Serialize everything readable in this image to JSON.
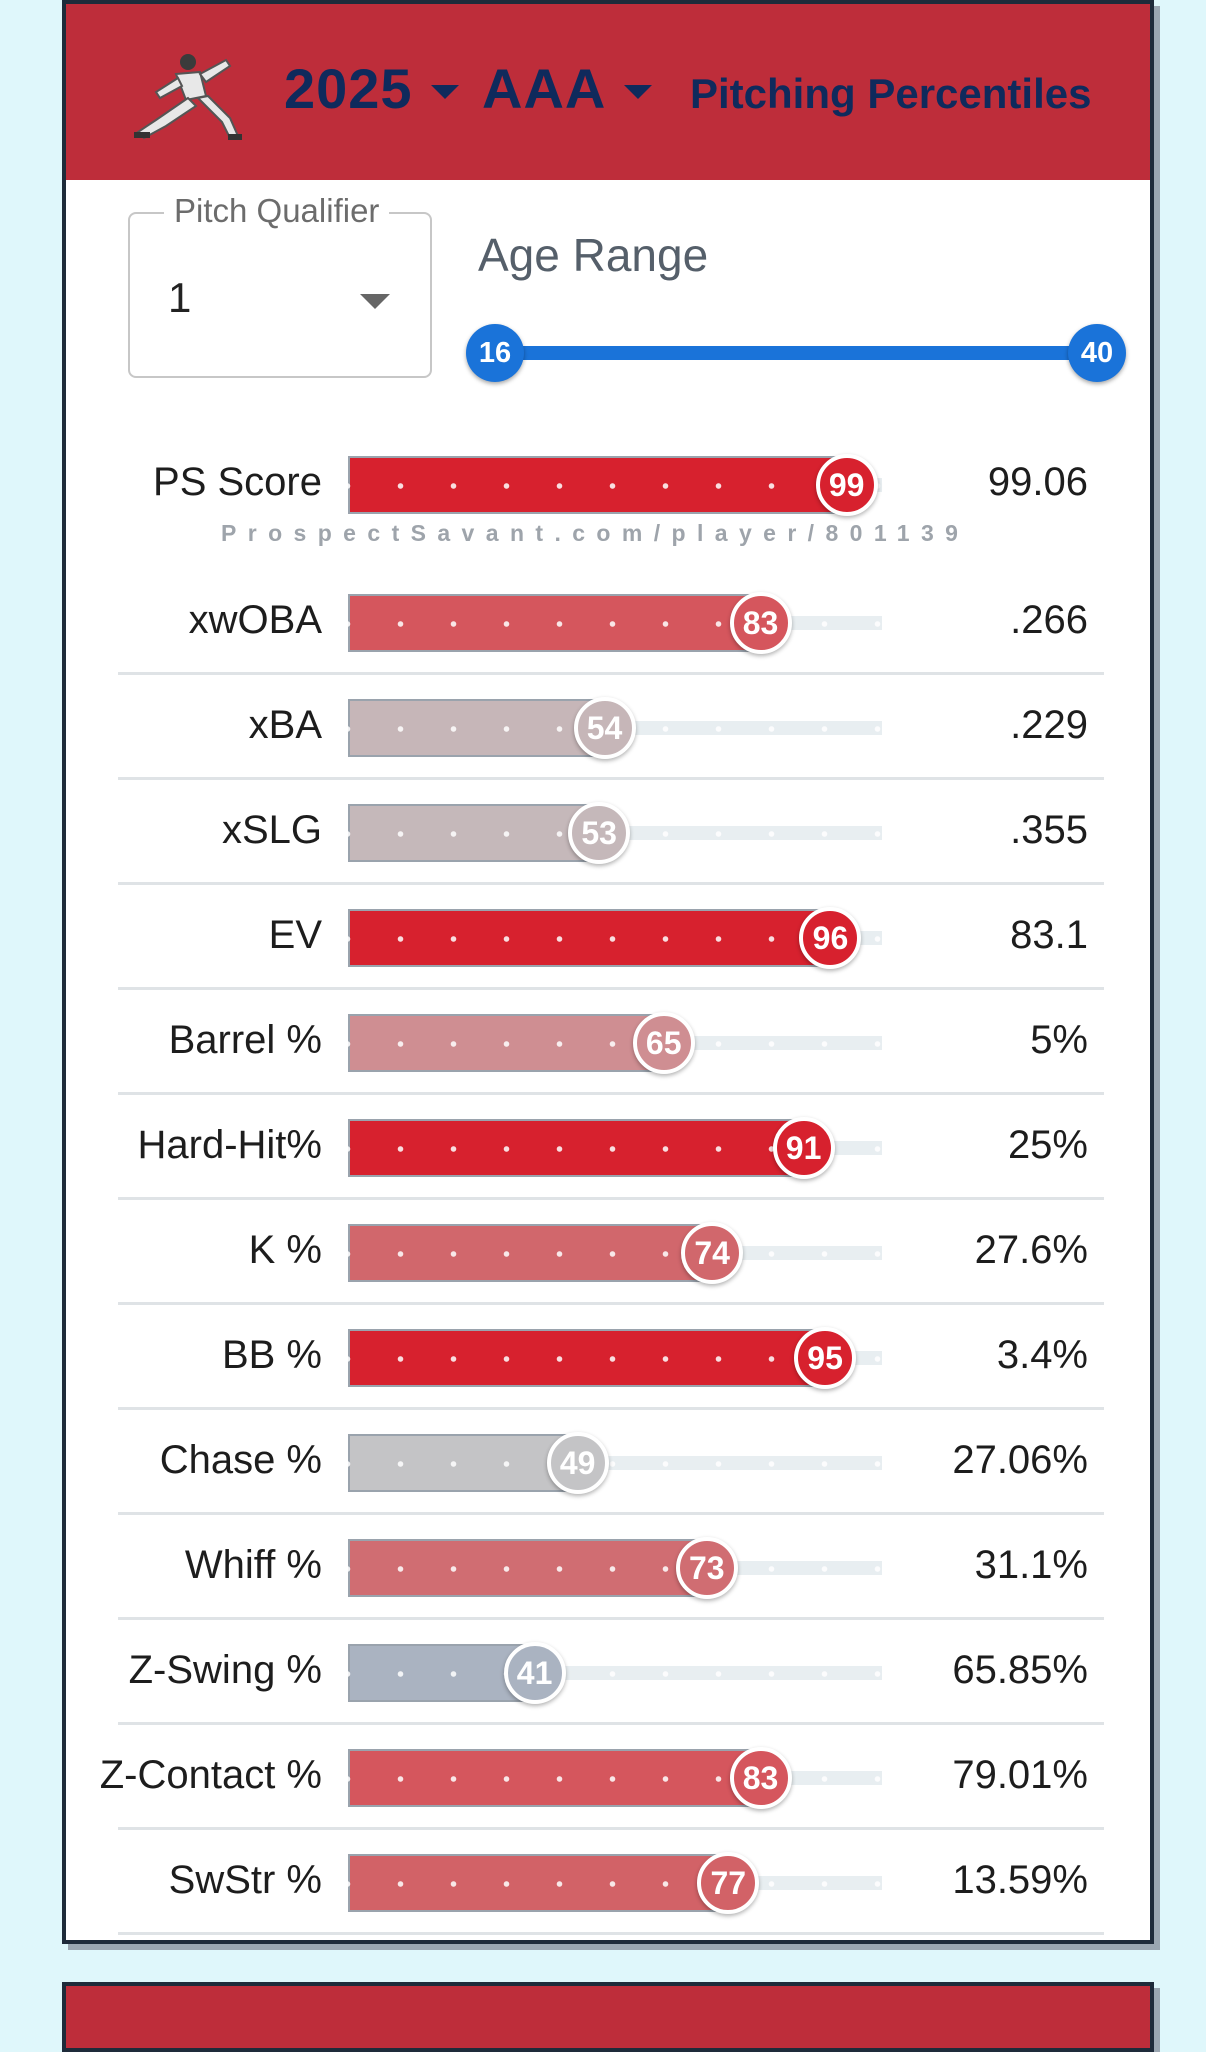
{
  "header": {
    "season": "2025",
    "level": "AAA",
    "title": "Pitching Percentiles"
  },
  "controls": {
    "pitch_qualifier_label": "Pitch Qualifier",
    "pitch_qualifier_value": "1",
    "age_range_label": "Age Range",
    "age_min": "16",
    "age_max": "40"
  },
  "watermark": "ProspectSavant.com/player/801139",
  "stats": [
    {
      "label": "PS Score",
      "percentile": 99,
      "value": "99.06",
      "color": "#d7212e"
    },
    {
      "label": "xwOBA",
      "percentile": 83,
      "value": ".266",
      "color": "#d5565d"
    },
    {
      "label": "xBA",
      "percentile": 54,
      "value": ".229",
      "color": "#c6b6b8"
    },
    {
      "label": "xSLG",
      "percentile": 53,
      "value": ".355",
      "color": "#c5b8ba"
    },
    {
      "label": "EV",
      "percentile": 96,
      "value": "83.1",
      "color": "#d7212e"
    },
    {
      "label": "Barrel %",
      "percentile": 65,
      "value": "5%",
      "color": "#cf8e92"
    },
    {
      "label": "Hard-Hit%",
      "percentile": 91,
      "value": "25%",
      "color": "#d7212e"
    },
    {
      "label": "K %",
      "percentile": 74,
      "value": "27.6%",
      "color": "#d1676c"
    },
    {
      "label": "BB %",
      "percentile": 95,
      "value": "3.4%",
      "color": "#d7212e"
    },
    {
      "label": "Chase %",
      "percentile": 49,
      "value": "27.06%",
      "color": "#c4c4c6"
    },
    {
      "label": "Whiff %",
      "percentile": 73,
      "value": "31.1%",
      "color": "#d06d72"
    },
    {
      "label": "Z-Swing %",
      "percentile": 41,
      "value": "65.85%",
      "color": "#aab3c1"
    },
    {
      "label": "Z-Contact %",
      "percentile": 83,
      "value": "79.01%",
      "color": "#d5565d"
    },
    {
      "label": "SwStr %",
      "percentile": 77,
      "value": "13.59%",
      "color": "#d26267"
    }
  ]
}
